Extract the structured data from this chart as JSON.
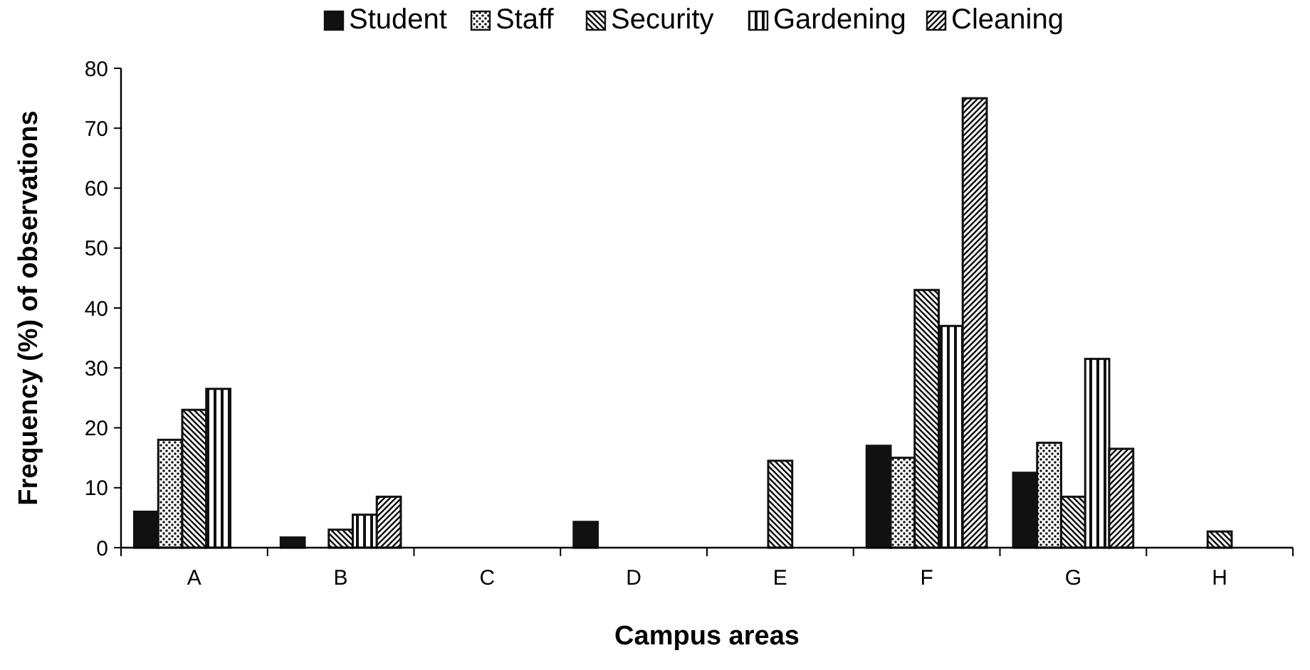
{
  "chart_data": {
    "type": "bar",
    "xlabel": "Campus areas",
    "ylabel": "Frequency (%) of observations",
    "categories": [
      "A",
      "B",
      "C",
      "D",
      "E",
      "F",
      "G",
      "H"
    ],
    "series": [
      {
        "name": "Student",
        "color": "#111111",
        "values": [
          6,
          1.7,
          0,
          4.3,
          0,
          17,
          12.5,
          0
        ]
      },
      {
        "name": "Staff",
        "color": "#111111",
        "values": [
          18,
          0,
          0,
          0,
          0,
          15,
          17.5,
          0
        ]
      },
      {
        "name": "Security",
        "color": "#111111",
        "values": [
          23,
          3,
          0,
          0,
          14.5,
          43,
          8.5,
          2.7
        ]
      },
      {
        "name": "Gardening",
        "color": "#111111",
        "values": [
          26.5,
          5.5,
          0,
          0,
          0,
          37,
          31.5,
          0
        ]
      },
      {
        "name": "Cleaning",
        "color": "#111111",
        "values": [
          0,
          8.5,
          0,
          0,
          0,
          75,
          16.5,
          0
        ]
      }
    ],
    "ylim": [
      0,
      80
    ],
    "yticks": [
      0,
      10,
      20,
      30,
      40,
      50,
      60,
      70,
      80
    ],
    "grid": false,
    "legend": "top"
  }
}
